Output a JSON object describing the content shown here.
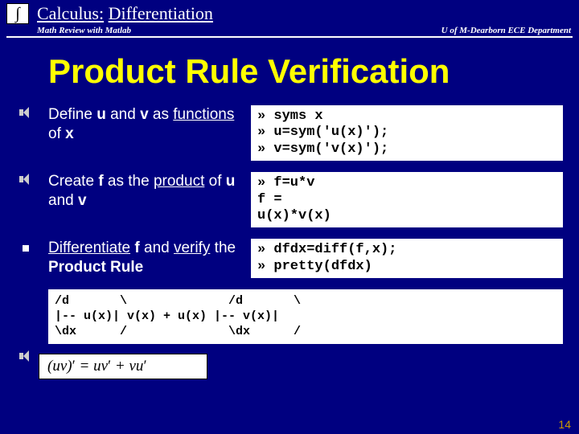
{
  "header": {
    "logo_glyph": "∫",
    "title_part1": "Calculus:",
    "title_part2": "Differentiation",
    "sub_left": "Math Review with Matlab",
    "sub_right": "U of M-Dearborn ECE Department"
  },
  "main_title": "Product Rule Verification",
  "steps": [
    {
      "desc_html": "Define <b>u</b> and <b>v</b> as <span class=\"ul\">functions</span> of <b>x</b>",
      "code": "» syms x\n» u=sym('u(x)');\n» v=sym('v(x)');",
      "bullet": "speaker"
    },
    {
      "desc_html": "Create <b>f</b> as the <span class=\"ul\">product</span> of <b>u</b> and <b>v</b>",
      "code": "» f=u*v\nf =\nu(x)*v(x)",
      "bullet": "speaker"
    },
    {
      "desc_html": "<span class=\"ul\">Differentiate</span> <b>f</b> and <span class=\"ul\">verify</span> the <b>Product Rule</b>",
      "code": "» dfdx=diff(f,x);\n» pretty(dfdx)",
      "bullet": "square"
    }
  ],
  "output_code": "/d       \\              /d       \\\n|-- u(x)| v(x) + u(x) |-- v(x)|\n\\dx      /              \\dx      /",
  "formula": "(uv)′ = uv′ + vu′",
  "page_number": "14"
}
